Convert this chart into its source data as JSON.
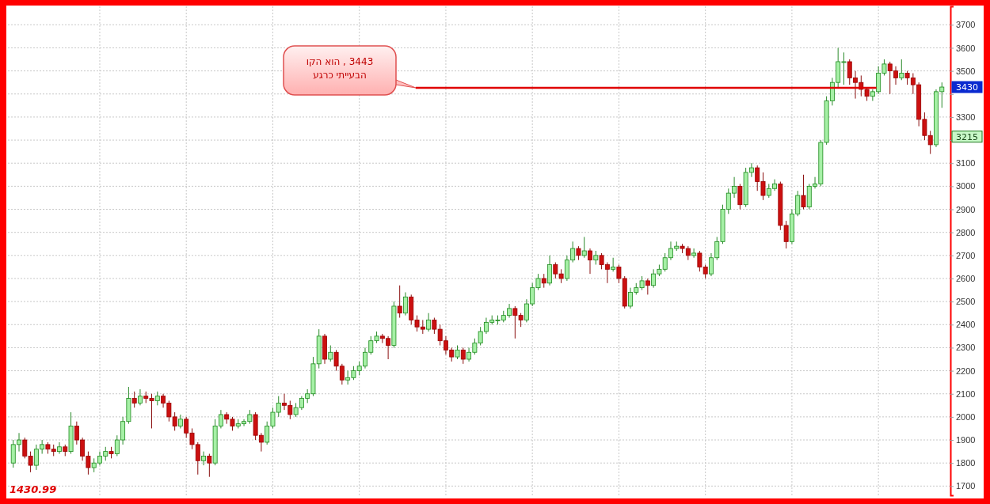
{
  "chart_data": {
    "type": "candlestick",
    "categories": [
      null,
      null,
      null,
      null,
      null,
      null,
      null,
      null,
      null,
      null,
      null,
      null,
      null,
      null,
      null,
      null,
      null,
      null,
      null,
      null,
      null,
      null,
      null,
      null,
      null,
      null,
      null,
      null,
      null,
      null,
      null,
      null,
      null,
      null,
      null,
      null,
      null,
      null,
      null,
      null,
      null,
      null,
      null,
      null,
      null,
      null,
      null,
      null,
      null,
      null,
      null,
      null,
      null,
      null,
      null,
      null,
      null,
      null,
      null,
      null,
      null,
      null,
      null,
      null,
      null,
      null,
      null,
      null,
      null,
      null,
      null,
      null,
      null,
      null,
      null,
      null,
      null,
      null,
      null,
      null,
      null,
      null,
      null,
      null,
      null,
      null,
      null,
      null,
      null,
      null,
      null,
      null,
      null,
      null,
      null,
      null,
      null,
      null,
      null,
      null,
      null,
      null,
      null,
      null,
      null,
      null,
      null,
      null,
      null,
      null,
      null,
      null,
      null,
      null,
      null,
      null,
      null,
      null,
      null,
      null,
      null,
      null,
      null,
      null,
      null,
      null,
      null,
      null,
      null,
      null,
      null,
      null,
      null,
      null,
      null,
      null,
      null,
      null,
      null,
      null,
      null,
      null,
      null,
      null,
      null,
      null,
      null,
      null,
      null,
      null,
      null,
      null,
      null,
      null,
      null,
      null,
      null,
      null,
      null,
      null,
      null,
      null
    ],
    "ohlc": [
      [
        1800,
        1900,
        1780,
        1880
      ],
      [
        1880,
        1930,
        1850,
        1900
      ],
      [
        1900,
        1910,
        1820,
        1830
      ],
      [
        1830,
        1850,
        1760,
        1790
      ],
      [
        1790,
        1880,
        1770,
        1860
      ],
      [
        1860,
        1900,
        1840,
        1880
      ],
      [
        1880,
        1890,
        1840,
        1860
      ],
      [
        1860,
        1880,
        1830,
        1850
      ],
      [
        1850,
        1890,
        1840,
        1870
      ],
      [
        1870,
        1880,
        1830,
        1850
      ],
      [
        1850,
        2020,
        1840,
        1960
      ],
      [
        1960,
        1980,
        1880,
        1900
      ],
      [
        1900,
        1910,
        1810,
        1830
      ],
      [
        1830,
        1850,
        1750,
        1780
      ],
      [
        1780,
        1820,
        1760,
        1800
      ],
      [
        1800,
        1850,
        1790,
        1830
      ],
      [
        1830,
        1870,
        1810,
        1850
      ],
      [
        1850,
        1870,
        1820,
        1840
      ],
      [
        1840,
        1920,
        1830,
        1900
      ],
      [
        1900,
        2000,
        1880,
        1980
      ],
      [
        1980,
        2130,
        1970,
        2080
      ],
      [
        2080,
        2110,
        2040,
        2060
      ],
      [
        2060,
        2120,
        2050,
        2090
      ],
      [
        2090,
        2110,
        2060,
        2080
      ],
      [
        2080,
        2100,
        1950,
        2070
      ],
      [
        2070,
        2110,
        2050,
        2090
      ],
      [
        2090,
        2100,
        2040,
        2060
      ],
      [
        2060,
        2070,
        1980,
        2000
      ],
      [
        2000,
        2020,
        1940,
        1960
      ],
      [
        1960,
        2010,
        1950,
        1990
      ],
      [
        1990,
        2000,
        1910,
        1930
      ],
      [
        1930,
        1950,
        1860,
        1880
      ],
      [
        1880,
        1890,
        1750,
        1810
      ],
      [
        1810,
        1850,
        1790,
        1830
      ],
      [
        1830,
        1840,
        1740,
        1800
      ],
      [
        1800,
        1990,
        1790,
        1960
      ],
      [
        1960,
        2030,
        1950,
        2010
      ],
      [
        2010,
        2020,
        1970,
        1990
      ],
      [
        1990,
        2000,
        1940,
        1960
      ],
      [
        1960,
        1990,
        1950,
        1970
      ],
      [
        1970,
        1990,
        1960,
        1980
      ],
      [
        1980,
        2030,
        1970,
        2010
      ],
      [
        2010,
        2020,
        1900,
        1920
      ],
      [
        1920,
        1930,
        1850,
        1890
      ],
      [
        1890,
        1980,
        1880,
        1960
      ],
      [
        1960,
        2040,
        1950,
        2020
      ],
      [
        2020,
        2090,
        2000,
        2060
      ],
      [
        2060,
        2100,
        2030,
        2050
      ],
      [
        2050,
        2070,
        1990,
        2010
      ],
      [
        2010,
        2060,
        2000,
        2040
      ],
      [
        2040,
        2090,
        2030,
        2080
      ],
      [
        2080,
        2120,
        2060,
        2100
      ],
      [
        2100,
        2260,
        2090,
        2230
      ],
      [
        2230,
        2380,
        2210,
        2350
      ],
      [
        2350,
        2360,
        2230,
        2250
      ],
      [
        2250,
        2310,
        2240,
        2280
      ],
      [
        2280,
        2290,
        2200,
        2220
      ],
      [
        2220,
        2230,
        2140,
        2160
      ],
      [
        2160,
        2200,
        2140,
        2170
      ],
      [
        2170,
        2220,
        2160,
        2200
      ],
      [
        2200,
        2240,
        2180,
        2220
      ],
      [
        2220,
        2300,
        2210,
        2280
      ],
      [
        2280,
        2350,
        2270,
        2330
      ],
      [
        2330,
        2370,
        2320,
        2350
      ],
      [
        2350,
        2360,
        2320,
        2340
      ],
      [
        2340,
        2350,
        2250,
        2310
      ],
      [
        2310,
        2500,
        2300,
        2480
      ],
      [
        2480,
        2570,
        2430,
        2450
      ],
      [
        2450,
        2540,
        2440,
        2520
      ],
      [
        2520,
        2530,
        2400,
        2420
      ],
      [
        2420,
        2440,
        2370,
        2390
      ],
      [
        2390,
        2420,
        2360,
        2380
      ],
      [
        2380,
        2450,
        2370,
        2420
      ],
      [
        2420,
        2430,
        2360,
        2380
      ],
      [
        2380,
        2400,
        2310,
        2330
      ],
      [
        2330,
        2350,
        2270,
        2290
      ],
      [
        2290,
        2300,
        2240,
        2260
      ],
      [
        2260,
        2310,
        2250,
        2290
      ],
      [
        2290,
        2300,
        2230,
        2250
      ],
      [
        2250,
        2300,
        2240,
        2280
      ],
      [
        2280,
        2340,
        2270,
        2320
      ],
      [
        2320,
        2390,
        2310,
        2370
      ],
      [
        2370,
        2430,
        2360,
        2410
      ],
      [
        2410,
        2440,
        2400,
        2420
      ],
      [
        2420,
        2440,
        2400,
        2420
      ],
      [
        2420,
        2460,
        2410,
        2440
      ],
      [
        2440,
        2490,
        2430,
        2470
      ],
      [
        2470,
        2480,
        2340,
        2440
      ],
      [
        2440,
        2450,
        2390,
        2420
      ],
      [
        2420,
        2510,
        2410,
        2490
      ],
      [
        2490,
        2580,
        2480,
        2560
      ],
      [
        2560,
        2620,
        2550,
        2600
      ],
      [
        2600,
        2620,
        2560,
        2580
      ],
      [
        2580,
        2700,
        2570,
        2660
      ],
      [
        2660,
        2670,
        2600,
        2620
      ],
      [
        2620,
        2640,
        2580,
        2600
      ],
      [
        2600,
        2700,
        2590,
        2680
      ],
      [
        2680,
        2760,
        2670,
        2730
      ],
      [
        2730,
        2740,
        2680,
        2700
      ],
      [
        2700,
        2780,
        2690,
        2720
      ],
      [
        2720,
        2730,
        2620,
        2680
      ],
      [
        2680,
        2720,
        2660,
        2700
      ],
      [
        2700,
        2710,
        2640,
        2660
      ],
      [
        2660,
        2670,
        2580,
        2640
      ],
      [
        2640,
        2690,
        2630,
        2650
      ],
      [
        2650,
        2660,
        2580,
        2600
      ],
      [
        2600,
        2610,
        2470,
        2480
      ],
      [
        2480,
        2560,
        2470,
        2540
      ],
      [
        2540,
        2580,
        2530,
        2560
      ],
      [
        2560,
        2610,
        2550,
        2590
      ],
      [
        2590,
        2600,
        2530,
        2570
      ],
      [
        2570,
        2640,
        2560,
        2620
      ],
      [
        2620,
        2660,
        2610,
        2640
      ],
      [
        2640,
        2710,
        2630,
        2690
      ],
      [
        2690,
        2760,
        2680,
        2730
      ],
      [
        2730,
        2760,
        2720,
        2740
      ],
      [
        2740,
        2750,
        2710,
        2730
      ],
      [
        2730,
        2740,
        2680,
        2700
      ],
      [
        2700,
        2730,
        2690,
        2710
      ],
      [
        2710,
        2720,
        2630,
        2650
      ],
      [
        2650,
        2660,
        2600,
        2620
      ],
      [
        2620,
        2710,
        2610,
        2690
      ],
      [
        2690,
        2780,
        2680,
        2760
      ],
      [
        2760,
        2920,
        2750,
        2900
      ],
      [
        2900,
        2990,
        2880,
        2970
      ],
      [
        2970,
        3040,
        2950,
        3000
      ],
      [
        3000,
        3010,
        2900,
        2920
      ],
      [
        2920,
        3080,
        2910,
        3060
      ],
      [
        3060,
        3100,
        3040,
        3080
      ],
      [
        3080,
        3090,
        2980,
        3020
      ],
      [
        3020,
        3060,
        2940,
        2960
      ],
      [
        2960,
        3010,
        2950,
        2990
      ],
      [
        2990,
        3030,
        2980,
        3010
      ],
      [
        3010,
        3020,
        2810,
        2830
      ],
      [
        2830,
        2850,
        2730,
        2760
      ],
      [
        2760,
        2900,
        2750,
        2880
      ],
      [
        2880,
        2980,
        2870,
        2960
      ],
      [
        2960,
        3050,
        2900,
        2910
      ],
      [
        2910,
        3010,
        2900,
        3000
      ],
      [
        3000,
        3040,
        2990,
        3010
      ],
      [
        3010,
        3200,
        3000,
        3190
      ],
      [
        3190,
        3390,
        3180,
        3370
      ],
      [
        3370,
        3470,
        3350,
        3450
      ],
      [
        3450,
        3600,
        3430,
        3540
      ],
      [
        3540,
        3580,
        3440,
        3540
      ],
      [
        3540,
        3550,
        3440,
        3470
      ],
      [
        3470,
        3500,
        3380,
        3450
      ],
      [
        3450,
        3480,
        3390,
        3420
      ],
      [
        3420,
        3430,
        3370,
        3390
      ],
      [
        3390,
        3420,
        3370,
        3410
      ],
      [
        3410,
        3520,
        3400,
        3490
      ],
      [
        3490,
        3550,
        3480,
        3530
      ],
      [
        3530,
        3540,
        3400,
        3500
      ],
      [
        3500,
        3520,
        3440,
        3470
      ],
      [
        3470,
        3550,
        3460,
        3490
      ],
      [
        3490,
        3500,
        3440,
        3470
      ],
      [
        3470,
        3490,
        3400,
        3440
      ],
      [
        3440,
        3450,
        3260,
        3290
      ],
      [
        3290,
        3320,
        3200,
        3220
      ],
      [
        3220,
        3240,
        3140,
        3180
      ],
      [
        3180,
        3420,
        3170,
        3410
      ],
      [
        3410,
        3450,
        3340,
        3430
      ]
    ],
    "ylim": [
      1660,
      3780
    ],
    "yticks": [
      1700,
      1800,
      1900,
      2000,
      2100,
      2200,
      2300,
      2400,
      2500,
      2600,
      2700,
      2800,
      2900,
      3000,
      3100,
      {
        "value": 3200,
        "label": null
      },
      3300,
      {
        "value": 3400,
        "label": null
      },
      3500,
      3600,
      3700
    ],
    "grid": true,
    "annotations": [
      "1430.99",
      "3443 , הוא הקו\nהבעייתי כרגע",
      {
        "text": "3430",
        "y": 3430
      },
      {
        "text": "3215",
        "y": 3215
      }
    ]
  }
}
